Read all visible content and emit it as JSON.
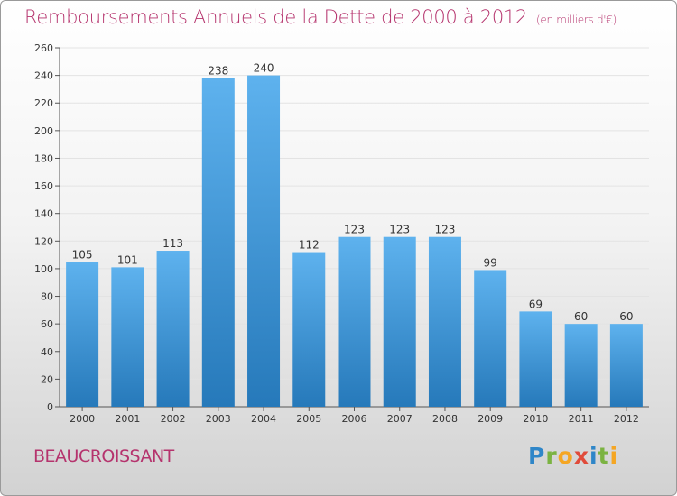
{
  "title": "Remboursements Annuels de la Dette de 2000 à 2012",
  "subtitle": "(en milliers d'€)",
  "commune": "BEAUCROISSANT",
  "logo": {
    "letters": [
      "P",
      "r",
      "o",
      "x",
      "i",
      "t",
      "i"
    ],
    "colors": [
      "#2f86c8",
      "#7bb342",
      "#f5a623",
      "#e04b3a",
      "#2f86c8",
      "#7bb342",
      "#f5a623"
    ]
  },
  "colors": {
    "bar": "#3f98dc",
    "title": "#b5336d"
  },
  "chart_data": {
    "type": "bar",
    "title": "Remboursements Annuels de la Dette de 2000 à 2012",
    "ylabel": "",
    "xlabel": "",
    "categories": [
      "2000",
      "2001",
      "2002",
      "2003",
      "2004",
      "2005",
      "2006",
      "2007",
      "2008",
      "2009",
      "2010",
      "2011",
      "2012"
    ],
    "values": [
      105,
      101,
      113,
      238,
      240,
      112,
      123,
      123,
      123,
      99,
      69,
      60,
      60
    ],
    "ylim": [
      0,
      260
    ],
    "yticks": [
      0,
      20,
      40,
      60,
      80,
      100,
      120,
      140,
      160,
      180,
      200,
      220,
      240,
      260
    ],
    "grid": "horizontal"
  }
}
